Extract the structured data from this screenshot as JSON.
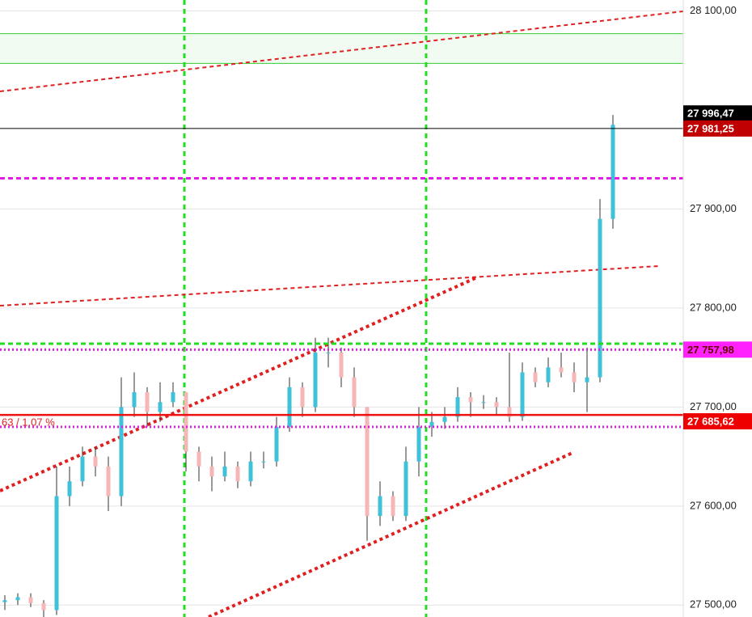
{
  "chart_data": {
    "type": "candlestick",
    "opens": [
      27503,
      27505,
      27508,
      27502,
      27495,
      27610,
      27625,
      27650,
      27640,
      27610,
      27700,
      27715,
      27695,
      27705,
      27715,
      27655,
      27640,
      27630,
      27640,
      27625,
      27645,
      27645,
      27680,
      27720,
      27700,
      27755,
      27755,
      27730,
      27700,
      27590,
      27610,
      27590,
      27645,
      27680,
      27685,
      27690,
      27710,
      27705,
      27705,
      27700,
      27690,
      27735,
      27725,
      27740,
      27735,
      27725,
      27730,
      27890
    ],
    "highs": [
      27510,
      27512,
      27512,
      27505,
      27640,
      27640,
      27660,
      27660,
      27650,
      27730,
      27735,
      27720,
      27725,
      27725,
      27715,
      27660,
      27650,
      27655,
      27645,
      27655,
      27655,
      27690,
      27730,
      27725,
      27770,
      27770,
      27760,
      27740,
      27700,
      27625,
      27615,
      27660,
      27700,
      27695,
      27700,
      27720,
      27715,
      27712,
      27710,
      27755,
      27745,
      27740,
      27750,
      27755,
      27745,
      27760,
      27910,
      27995
    ],
    "lows": [
      27495,
      27500,
      27498,
      27488,
      27490,
      27600,
      27620,
      27630,
      27595,
      27600,
      27690,
      27680,
      27685,
      27700,
      27635,
      27625,
      27615,
      27625,
      27618,
      27620,
      27638,
      27640,
      27675,
      27690,
      27695,
      27740,
      27720,
      27690,
      27565,
      27580,
      27585,
      27585,
      27630,
      27670,
      27678,
      27685,
      27690,
      27698,
      27692,
      27685,
      27686,
      27720,
      27720,
      27730,
      27715,
      27695,
      27725,
      27880
    ],
    "closes": [
      27505,
      27508,
      27502,
      27495,
      27610,
      27625,
      27650,
      27640,
      27610,
      27700,
      27715,
      27695,
      27705,
      27715,
      27655,
      27640,
      27630,
      27640,
      27625,
      27645,
      27645,
      27680,
      27720,
      27700,
      27755,
      27755,
      27730,
      27700,
      27590,
      27610,
      27590,
      27645,
      27680,
      27685,
      27690,
      27710,
      27705,
      27705,
      27700,
      27690,
      27735,
      27725,
      27740,
      27735,
      27725,
      27730,
      27890,
      27985
    ],
    "up_color": "#3ec1d9",
    "down_color": "#f4b6b6",
    "ylim": [
      27488,
      28111
    ],
    "yticks": [
      {
        "value": 27500,
        "label": "27 500,00"
      },
      {
        "value": 27600,
        "label": "27 600,00"
      },
      {
        "value": 27700,
        "label": "27 700,00"
      },
      {
        "value": 27800,
        "label": "27 800,00"
      },
      {
        "value": 27900,
        "label": "27 900,00"
      },
      {
        "value": 28100,
        "label": "28 100,00"
      }
    ],
    "grid": true,
    "zone": {
      "from": 28047,
      "to": 28077,
      "color": "#32cd32"
    },
    "levels": [
      {
        "value": 27981.25,
        "color": "#000000",
        "style": "solid"
      },
      {
        "value": 27931,
        "color": "#e020e0",
        "style": "dashed"
      },
      {
        "value": 27764,
        "color": "#22dd22",
        "style": "dashed"
      },
      {
        "value": 27758,
        "color": "#e020e0",
        "style": "dotted"
      },
      {
        "value": 27692,
        "color": "#ee1111",
        "style": "solid"
      },
      {
        "value": 27680,
        "color": "#e020e0",
        "style": "dotted"
      }
    ],
    "price_labels": [
      {
        "value": 27996.47,
        "label": "27 996,47",
        "color": "#000000"
      },
      {
        "value": 27981.25,
        "label": "27 981,25",
        "color": "#c00000"
      },
      {
        "value": 27757.98,
        "label": "27 757,98",
        "color": "#ff22ff"
      },
      {
        "value": 27685.62,
        "label": "27 685,62",
        "color": "#ee0000"
      }
    ],
    "annotation": "63 / 1.07 %"
  }
}
